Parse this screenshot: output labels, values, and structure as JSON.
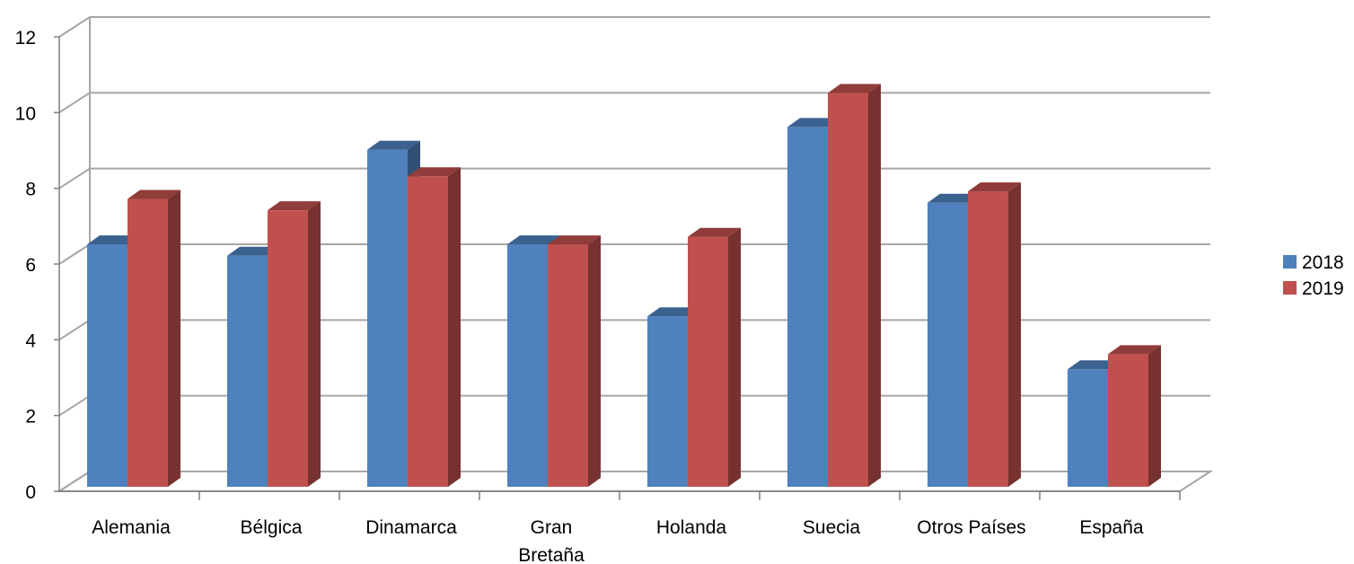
{
  "chart_data": {
    "type": "bar",
    "title": "",
    "xlabel": "",
    "ylabel": "",
    "ylim": [
      0,
      12
    ],
    "yticks": [
      "0",
      "2",
      "4",
      "6",
      "8",
      "10",
      "12"
    ],
    "categories": [
      [
        "Alemania"
      ],
      [
        "Bélgica"
      ],
      [
        "Dinamarca"
      ],
      [
        "Gran",
        "Bretaña"
      ],
      [
        "Holanda"
      ],
      [
        "Suecia"
      ],
      [
        "Otros Países"
      ],
      [
        "España"
      ]
    ],
    "series": [
      {
        "name": "2018",
        "color": "#4F81BD",
        "values": [
          6.4,
          6.1,
          8.9,
          6.4,
          4.5,
          9.5,
          7.5,
          3.1
        ]
      },
      {
        "name": "2019",
        "color": "#C0504D",
        "values": [
          7.6,
          7.3,
          8.2,
          6.4,
          6.6,
          10.4,
          7.8,
          3.5
        ]
      }
    ],
    "grid": true,
    "legend_position": "right"
  }
}
